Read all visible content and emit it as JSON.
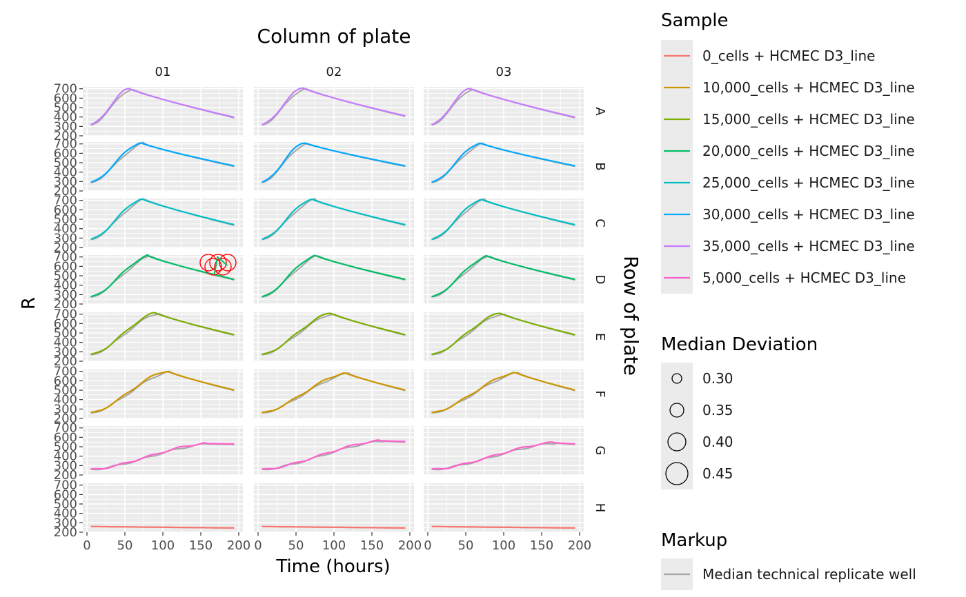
{
  "chart_data": {
    "type": "line",
    "facet_col_title": "Column of plate",
    "facet_row_title": "Row of plate",
    "xlabel": "Time (hours)",
    "ylabel": "R",
    "xlim": [
      0,
      200
    ],
    "ylim": [
      200,
      720
    ],
    "x_ticks": [
      "0",
      "50",
      "100",
      "150",
      "200"
    ],
    "y_ticks": [
      "200",
      "300",
      "400",
      "500",
      "600",
      "700"
    ],
    "columns": [
      "01",
      "02",
      "03"
    ],
    "rows": [
      "A",
      "B",
      "C",
      "D",
      "E",
      "F",
      "G",
      "H"
    ],
    "grid": true,
    "legend_position": "right",
    "legends": {
      "sample": {
        "title": "Sample",
        "items": [
          {
            "label": "0_cells + HCMEC D3_line",
            "color": "#F8766D"
          },
          {
            "label": "10,000_cells + HCMEC D3_line",
            "color": "#CD9600"
          },
          {
            "label": "15,000_cells + HCMEC D3_line",
            "color": "#7CAE00"
          },
          {
            "label": "20,000_cells + HCMEC D3_line",
            "color": "#00BE67"
          },
          {
            "label": "25,000_cells + HCMEC D3_line",
            "color": "#00BFC4"
          },
          {
            "label": "30,000_cells + HCMEC D3_line",
            "color": "#00A9FF"
          },
          {
            "label": "35,000_cells + HCMEC D3_line",
            "color": "#C77CFF"
          },
          {
            "label": "5,000_cells + HCMEC D3_line",
            "color": "#FF61CC"
          }
        ]
      },
      "deviation": {
        "title": "Median Deviation",
        "items": [
          {
            "label": "0.30",
            "value": 0.3
          },
          {
            "label": "0.35",
            "value": 0.35
          },
          {
            "label": "0.40",
            "value": 0.4
          },
          {
            "label": "0.45",
            "value": 0.45
          }
        ]
      },
      "markup": {
        "title": "Markup",
        "items": [
          {
            "label": "Median technical replicate well",
            "color": "#A6A6A6"
          }
        ]
      }
    },
    "median_color": "#A6A6A6",
    "markup_color": "#FF0000",
    "row_series": {
      "A": {
        "color": "#C77CFF",
        "peak_x": 55,
        "peak_y": 705,
        "start_y": 310,
        "end_y": 395
      },
      "B": {
        "color": "#00A9FF",
        "peak_x": 70,
        "peak_y": 715,
        "start_y": 285,
        "end_y": 465
      },
      "C": {
        "color": "#00BFC4",
        "peak_x": 72,
        "peak_y": 720,
        "start_y": 280,
        "end_y": 440
      },
      "D": {
        "color": "#00BE67",
        "peak_x": 80,
        "peak_y": 715,
        "start_y": 270,
        "end_y": 460
      },
      "E": {
        "color": "#7CAE00",
        "peak_x": 90,
        "peak_y": 715,
        "start_y": 265,
        "end_y": 480
      },
      "F": {
        "color": "#CD9600",
        "peak_x": 105,
        "peak_y": 705,
        "start_y": 255,
        "end_y": 500
      },
      "G": {
        "color": "#FF61CC",
        "peak_x": 155,
        "peak_y": 535,
        "start_y": 255,
        "end_y": 530
      },
      "H": {
        "color": "#F8766D",
        "flat_start_y": 260,
        "flat_end_y": 245
      }
    },
    "panel_variants": {
      "A-02": {
        "peak_x": 58,
        "peak_y": 712,
        "end_y": 410
      },
      "A-03": {
        "peak_x": 55,
        "peak_y": 705
      },
      "B-02": {
        "peak_x": 60,
        "peak_y": 715
      },
      "B-03": {
        "peak_x": 68,
        "peak_y": 712
      },
      "C-02": {
        "peak_x": 70,
        "peak_y": 718
      },
      "C-03": {
        "peak_x": 70,
        "peak_y": 715
      },
      "D-02": {
        "peak_x": 75,
        "peak_y": 718
      },
      "D-03": {
        "peak_x": 78,
        "peak_y": 712
      },
      "E-02": {
        "peak_x": 95,
        "peak_y": 712
      },
      "E-03": {
        "peak_x": 95,
        "peak_y": 712
      },
      "F-02": {
        "peak_x": 115,
        "peak_y": 685
      },
      "F-03": {
        "peak_x": 115,
        "peak_y": 690
      },
      "G-02": {
        "peak_x": 160,
        "peak_y": 565,
        "end_y": 555
      },
      "G-03": {
        "peak_x": 165,
        "peak_y": 545
      }
    }
  }
}
